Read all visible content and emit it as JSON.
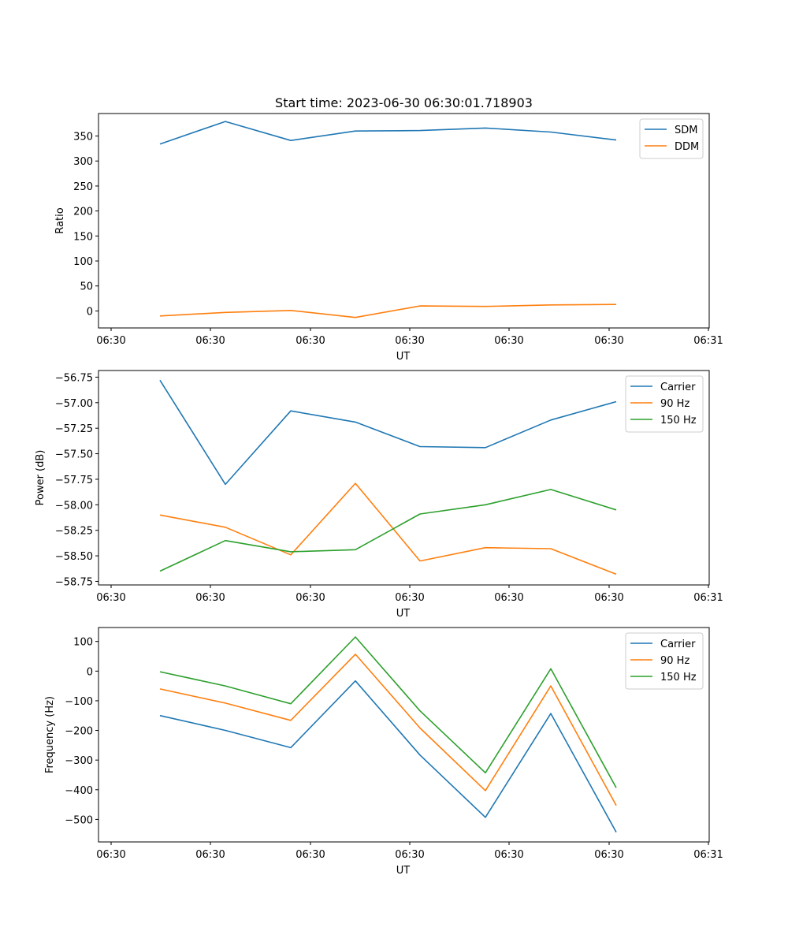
{
  "chart_data": [
    {
      "type": "line",
      "title": "Start time: 2023-06-30 06:30:01.718903",
      "xlabel": "UT",
      "ylabel": "Ratio",
      "x_tick_labels": [
        "06:30",
        "06:30",
        "06:30",
        "06:30",
        "06:30",
        "06:30",
        "06:30",
        "06:31"
      ],
      "y_ticks": [
        0,
        50,
        100,
        150,
        200,
        250,
        300,
        350
      ],
      "ylim": [
        -34,
        395
      ],
      "grid": false,
      "legend_position": "top-right",
      "series": [
        {
          "name": "SDM",
          "color": "#1f77b4",
          "values": [
            334,
            379,
            341,
            360,
            361,
            366,
            358,
            342
          ]
        },
        {
          "name": "DDM",
          "color": "#ff7f0e",
          "values": [
            -10,
            -3,
            1,
            -13,
            10,
            9,
            12,
            13
          ]
        }
      ]
    },
    {
      "type": "line",
      "title": "",
      "xlabel": "UT",
      "ylabel": "Power (dB)",
      "x_tick_labels": [
        "06:30",
        "06:30",
        "06:30",
        "06:30",
        "06:30",
        "06:30",
        "06:30",
        "06:31"
      ],
      "y_ticks": [
        -56.75,
        -57.0,
        -57.25,
        -57.5,
        -57.75,
        -58.0,
        -58.25,
        -58.5,
        -58.75
      ],
      "y_tick_labels": [
        "−56.75",
        "−57.00",
        "−57.25",
        "−57.50",
        "−57.75",
        "−58.00",
        "−58.25",
        "−58.50",
        "−58.75"
      ],
      "ylim": [
        -58.785,
        -56.685
      ],
      "grid": false,
      "legend_position": "top-right",
      "series": [
        {
          "name": "Carrier",
          "color": "#1f77b4",
          "values": [
            -56.78,
            -57.8,
            -57.08,
            -57.19,
            -57.43,
            -57.44,
            -57.17,
            -56.99
          ]
        },
        {
          "name": "90 Hz",
          "color": "#ff7f0e",
          "values": [
            -58.1,
            -58.22,
            -58.49,
            -57.79,
            -58.55,
            -58.42,
            -58.43,
            -58.68
          ]
        },
        {
          "name": "150 Hz",
          "color": "#2ca02c",
          "values": [
            -58.65,
            -58.35,
            -58.46,
            -58.44,
            -58.09,
            -58.0,
            -57.85,
            -58.05
          ]
        }
      ]
    },
    {
      "type": "line",
      "title": "",
      "xlabel": "UT",
      "ylabel": "Frequency (Hz)",
      "x_tick_labels": [
        "06:30",
        "06:30",
        "06:30",
        "06:30",
        "06:30",
        "06:30",
        "06:30",
        "06:31"
      ],
      "y_ticks": [
        100,
        0,
        -100,
        -200,
        -300,
        -400,
        -500
      ],
      "y_tick_labels": [
        "100",
        "0",
        "−100",
        "−200",
        "−300",
        "−400",
        "−500"
      ],
      "ylim": [
        -576,
        147
      ],
      "grid": false,
      "legend_position": "top-right",
      "series": [
        {
          "name": "Carrier",
          "color": "#1f77b4",
          "values": [
            -150,
            -200,
            -258,
            -33,
            -283,
            -493,
            -143,
            -543
          ]
        },
        {
          "name": "90 Hz",
          "color": "#ff7f0e",
          "values": [
            -60,
            -108,
            -166,
            57,
            -192,
            -403,
            -50,
            -453
          ]
        },
        {
          "name": "150 Hz",
          "color": "#2ca02c",
          "values": [
            -2,
            -50,
            -110,
            115,
            -134,
            -343,
            8,
            -393
          ]
        }
      ]
    }
  ]
}
